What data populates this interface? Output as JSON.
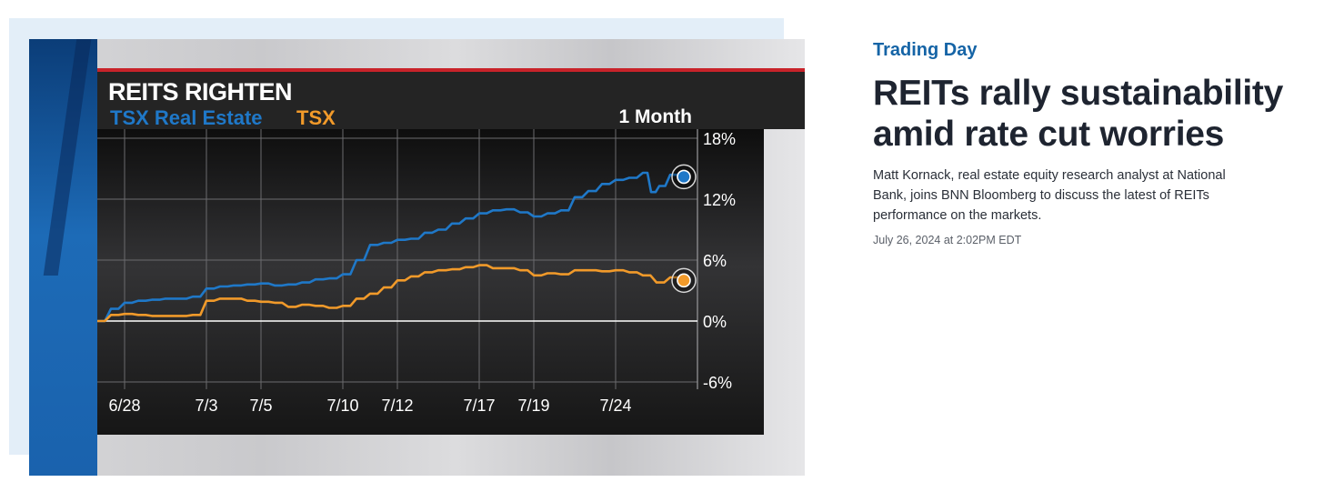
{
  "article": {
    "kicker": "Trading Day",
    "headline": "REITs rally sustainability amid rate cut worries",
    "description": "Matt Kornack, real estate equity research analyst at National Bank, joins BNN Bloomberg to discuss the latest of REITs performance on the markets.",
    "date": "July 26, 2024 at 2:02PM EDT"
  },
  "colors": {
    "real_estate": "#1f78c8",
    "tsx": "#f19a2a",
    "kicker": "#1564a6",
    "header_bar": "#c8232a"
  },
  "chart_data": {
    "type": "line",
    "title": "REITS RIGHTEN",
    "period": "1 Month",
    "xlabel": "",
    "ylabel": "",
    "ylim": [
      -6,
      18
    ],
    "xlim": [
      0,
      22
    ],
    "grid": true,
    "legend": "top-left",
    "ticks_y": [
      "18%",
      "12%",
      "6%",
      "0%",
      "-6%"
    ],
    "tick_values_y": [
      18,
      12,
      6,
      0,
      -6
    ],
    "ticks_x": [
      {
        "label": "6/28",
        "x": 1
      },
      {
        "label": "7/3",
        "x": 4
      },
      {
        "label": "7/5",
        "x": 6
      },
      {
        "label": "7/10",
        "x": 9
      },
      {
        "label": "7/12",
        "x": 11
      },
      {
        "label": "7/17",
        "x": 14
      },
      {
        "label": "7/19",
        "x": 16
      },
      {
        "label": "7/24",
        "x": 19
      }
    ],
    "series": [
      {
        "name": "TSX Real Estate",
        "color": "#1f78c8",
        "x": [
          0,
          0.5,
          1,
          1.5,
          2,
          2.5,
          3,
          3.5,
          4,
          4.5,
          5,
          5.5,
          6,
          6.5,
          7,
          7.5,
          8,
          8.5,
          9,
          9.5,
          10,
          10.5,
          11,
          11.5,
          12,
          12.5,
          13,
          13.5,
          14,
          14.5,
          15,
          15.5,
          16,
          16.5,
          17,
          17.5,
          18,
          18.5,
          19,
          19.5,
          20,
          20.3,
          20.6,
          21,
          21.5
        ],
        "y": [
          0,
          1.2,
          1.8,
          2.0,
          2.1,
          2.2,
          2.2,
          2.4,
          3.2,
          3.4,
          3.5,
          3.6,
          3.7,
          3.5,
          3.6,
          3.8,
          4.1,
          4.2,
          4.6,
          6.0,
          7.5,
          7.7,
          8.0,
          8.1,
          8.7,
          9.0,
          9.6,
          10.1,
          10.6,
          10.9,
          11.0,
          10.7,
          10.3,
          10.6,
          10.9,
          12.2,
          12.8,
          13.5,
          13.9,
          14.1,
          14.6,
          12.7,
          13.3,
          14.4,
          14.2
        ]
      },
      {
        "name": "TSX",
        "color": "#f19a2a",
        "x": [
          0,
          0.5,
          1,
          1.5,
          2,
          2.5,
          3,
          3.5,
          4,
          4.5,
          5,
          5.5,
          6,
          6.5,
          7,
          7.5,
          8,
          8.5,
          9,
          9.5,
          10,
          10.5,
          11,
          11.5,
          12,
          12.5,
          13,
          13.5,
          14,
          14.5,
          15,
          15.5,
          16,
          16.5,
          17,
          17.5,
          18,
          18.5,
          19,
          19.5,
          20,
          20.5,
          21,
          21.5
        ],
        "y": [
          0,
          0.6,
          0.7,
          0.6,
          0.5,
          0.5,
          0.5,
          0.6,
          2.0,
          2.2,
          2.2,
          2.0,
          1.9,
          1.8,
          1.4,
          1.6,
          1.5,
          1.3,
          1.5,
          2.2,
          2.7,
          3.3,
          4.0,
          4.4,
          4.8,
          5.0,
          5.1,
          5.3,
          5.5,
          5.2,
          5.2,
          5.0,
          4.5,
          4.7,
          4.6,
          5.0,
          5.0,
          4.9,
          5.0,
          4.8,
          4.5,
          3.8,
          4.3,
          4.0
        ]
      }
    ]
  }
}
